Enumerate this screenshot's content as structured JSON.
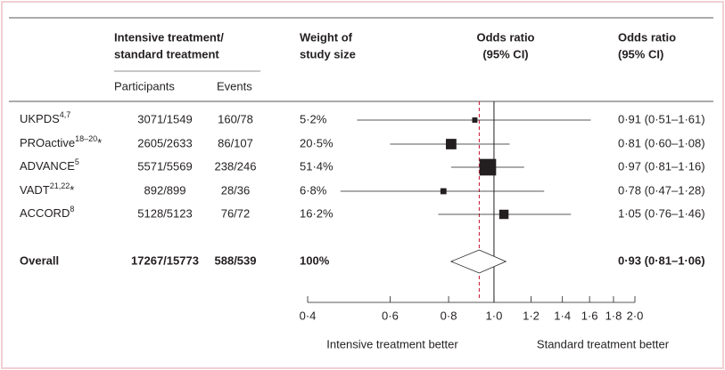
{
  "chart_data": {
    "type": "forest",
    "header": {
      "group": [
        "Intensive treatment/",
        "standard treatment"
      ],
      "participants": "Participants",
      "events": "Events",
      "weight": [
        "Weight of",
        "study size"
      ],
      "plot": [
        "Odds ratio",
        "(95% CI)"
      ],
      "ci": [
        "Odds ratio",
        "(95% CI)"
      ]
    },
    "studies": [
      {
        "name": "UKPDS",
        "ref": "4,7",
        "mark": "",
        "participants": "3071/1549",
        "events": "160/78",
        "weight": 5.2,
        "weight_label": "5·2%",
        "or": 0.91,
        "lo": 0.51,
        "hi": 1.61,
        "value_label": "0·91 (0·51–1·61)"
      },
      {
        "name": "PROactive",
        "ref": "18–20",
        "mark": "*",
        "participants": "2605/2633",
        "events": "86/107",
        "weight": 20.5,
        "weight_label": "20·5%",
        "or": 0.81,
        "lo": 0.6,
        "hi": 1.08,
        "value_label": "0·81 (0·60–1·08)"
      },
      {
        "name": "ADVANCE",
        "ref": "5",
        "mark": "",
        "participants": "5571/5569",
        "events": "238/246",
        "weight": 51.4,
        "weight_label": "51·4%",
        "or": 0.97,
        "lo": 0.81,
        "hi": 1.16,
        "value_label": "0·97 (0·81–1·16)"
      },
      {
        "name": "VADT",
        "ref": "21,22",
        "mark": "*",
        "participants": "892/899",
        "events": "28/36",
        "weight": 6.8,
        "weight_label": "6·8%",
        "or": 0.78,
        "lo": 0.47,
        "hi": 1.28,
        "value_label": "0·78 (0·47–1·28)"
      },
      {
        "name": "ACCORD",
        "ref": "8",
        "mark": "",
        "participants": "5128/5123",
        "events": "76/72",
        "weight": 16.2,
        "weight_label": "16·2%",
        "or": 1.05,
        "lo": 0.76,
        "hi": 1.46,
        "value_label": "1·05 (0·76–1·46)"
      }
    ],
    "overall": {
      "name": "Overall",
      "participants": "17267/15773",
      "events": "588/539",
      "weight": 100,
      "weight_label": "100%",
      "or": 0.93,
      "lo": 0.81,
      "hi": 1.06,
      "value_label": "0·93 (0·81–1·06)"
    },
    "reference": 1.0,
    "log_x": true,
    "xlim": [
      0.4,
      2.0
    ],
    "xticks": [
      {
        "value": 0.4,
        "label": "0·4"
      },
      {
        "value": 0.6,
        "label": "0·6"
      },
      {
        "value": 0.8,
        "label": "0·8"
      },
      {
        "value": 1.0,
        "label": "1·0"
      },
      {
        "value": 1.2,
        "label": "1·2"
      },
      {
        "value": 1.4,
        "label": "1·4"
      },
      {
        "value": 1.6,
        "label": "1·6"
      },
      {
        "value": 1.8,
        "label": "1·8"
      },
      {
        "value": 2.0,
        "label": "2·0"
      }
    ],
    "left_label": "Intensive treatment better",
    "right_label": "Standard treatment better",
    "overall_line_color": "#c8102e",
    "mark_color": "#231f20"
  }
}
